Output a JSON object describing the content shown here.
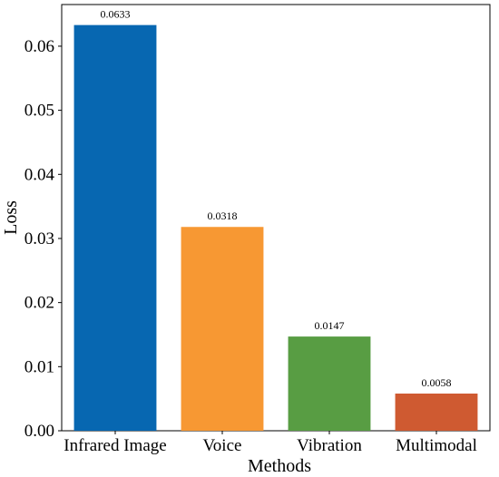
{
  "chart_data": {
    "type": "bar",
    "categories": [
      "Infrared Image",
      "Voice",
      "Vibration",
      "Multimodal"
    ],
    "values": [
      0.0633,
      0.0318,
      0.0147,
      0.0058
    ],
    "data_labels": [
      "0.0633",
      "0.0318",
      "0.0147",
      "0.0058"
    ],
    "colors": [
      "#0767b1",
      "#f79833",
      "#589d43",
      "#cf5a31"
    ],
    "title": "",
    "xlabel": "Methods",
    "ylabel": "Loss",
    "ylim": [
      0,
      0.0665
    ],
    "yticks": [
      0.0,
      0.01,
      0.02,
      0.03,
      0.04,
      0.05,
      0.06
    ],
    "ytick_labels": [
      "0.00",
      "0.01",
      "0.02",
      "0.03",
      "0.04",
      "0.05",
      "0.06"
    ],
    "grid": false,
    "legend": "none"
  }
}
